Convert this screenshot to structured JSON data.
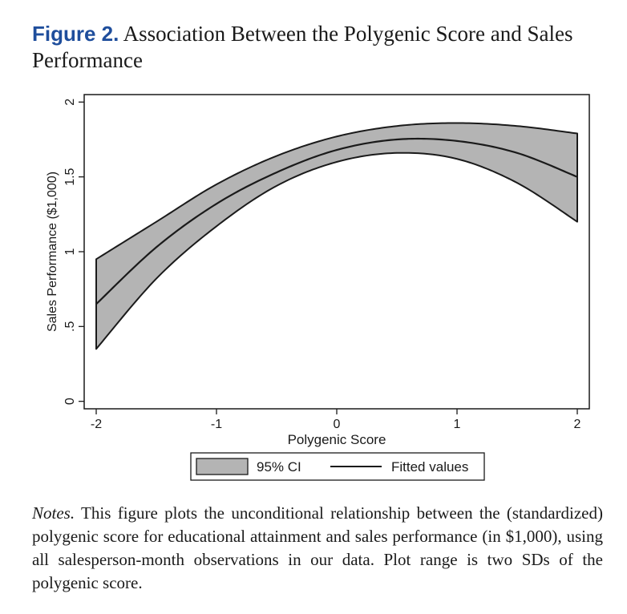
{
  "caption": {
    "figure_label": "Figure 2.",
    "title": "Association Between the Polygenic Score and Sales Performance"
  },
  "notes": {
    "label": "Notes.",
    "text": "This figure plots the unconditional relationship between the (standardized) polygenic score for educational attainment and sales performance (in $1,000), using all salesperson-month observations in our data. Plot range is two SDs of the polygenic score."
  },
  "chart_data": {
    "type": "line",
    "xlabel": "Polygenic Score",
    "ylabel": "Sales Performance ($1,000)",
    "xlim": [
      -2.1,
      2.1
    ],
    "ylim": [
      -0.05,
      2.05
    ],
    "x_ticks": [
      -2,
      -1,
      0,
      1,
      2
    ],
    "x_tick_labels": [
      "-2",
      "-1",
      "0",
      "1",
      "2"
    ],
    "y_ticks": [
      0,
      0.5,
      1,
      1.5,
      2
    ],
    "y_tick_labels": [
      "0",
      ".5",
      "1",
      "1.5",
      "2"
    ],
    "grid": false,
    "legend_position": "bottom",
    "band_color": "#b4b4b4",
    "line_color": "#1a1a1a",
    "x": [
      -2,
      -1.5,
      -1,
      -0.5,
      0,
      0.5,
      1,
      1.5,
      2
    ],
    "series": [
      {
        "name": "Fitted values",
        "values": [
          0.65,
          1.03,
          1.32,
          1.53,
          1.68,
          1.75,
          1.74,
          1.66,
          1.5
        ]
      },
      {
        "name": "95% CI",
        "type": "band",
        "lower": [
          0.35,
          0.82,
          1.17,
          1.44,
          1.6,
          1.66,
          1.62,
          1.46,
          1.2
        ],
        "upper": [
          0.95,
          1.2,
          1.45,
          1.64,
          1.77,
          1.84,
          1.86,
          1.84,
          1.79
        ]
      }
    ]
  }
}
